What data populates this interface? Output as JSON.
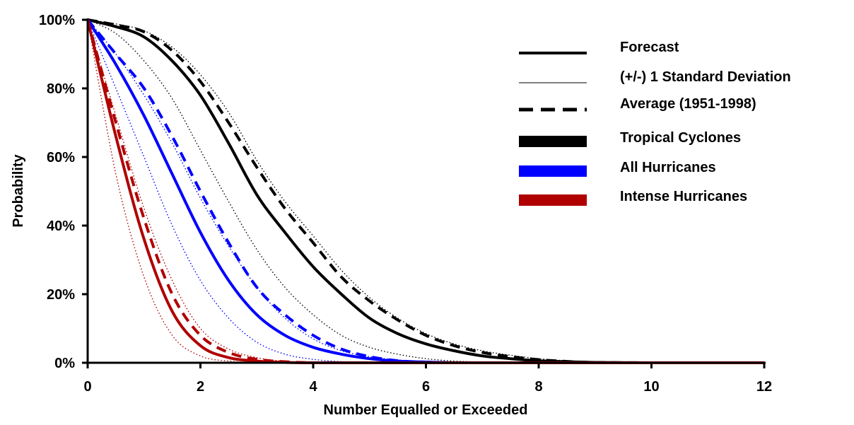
{
  "chart_data": {
    "type": "line",
    "title": "",
    "xlabel": "Number Equalled or Exceeded",
    "ylabel": "Probability",
    "xlim": [
      0,
      12
    ],
    "ylim": [
      0,
      100
    ],
    "x_ticks": [
      "0",
      "2",
      "4",
      "6",
      "8",
      "10",
      "12"
    ],
    "y_ticks": [
      "0%",
      "20%",
      "40%",
      "60%",
      "80%",
      "100%"
    ],
    "grid": false,
    "legend_placement": "top-right",
    "legend": {
      "styles": [
        {
          "label": "Forecast",
          "line": "solid"
        },
        {
          "label": "(+/-) 1 Standard Deviation",
          "line": "thin-dotted"
        },
        {
          "label": "Average (1951-1998)",
          "line": "dashed"
        }
      ],
      "groups": [
        {
          "label": "Tropical Cyclones",
          "color": "#000000"
        },
        {
          "label": "All Hurricanes",
          "color": "#0000ff"
        },
        {
          "label": "Intense Hurricanes",
          "color": "#b00000"
        }
      ]
    },
    "x": [
      0,
      0.5,
      1,
      1.5,
      2,
      2.5,
      3,
      3.5,
      4,
      4.5,
      5,
      5.5,
      6,
      6.5,
      7,
      7.5,
      8,
      8.5,
      9,
      10,
      11,
      12
    ],
    "series": [
      {
        "name": "Tropical Cyclones",
        "group": 0,
        "style": "forecast",
        "values": [
          100,
          98,
          95,
          88,
          78,
          64,
          49,
          38,
          28,
          20,
          13,
          8.5,
          5.5,
          3.5,
          2,
          1.2,
          0.6,
          0.3,
          0.1,
          0,
          0,
          0
        ]
      },
      {
        "group": 0,
        "style": "sd-upper",
        "values": [
          100,
          98.8,
          96.8,
          92,
          84,
          73,
          59,
          47,
          37,
          27,
          19,
          13,
          8.5,
          5.5,
          3.5,
          2.2,
          1.2,
          0.6,
          0.3,
          0,
          0,
          0
        ]
      },
      {
        "group": 0,
        "style": "sd-lower",
        "values": [
          100,
          96,
          88,
          77,
          62,
          47,
          33,
          22,
          14,
          8,
          4.5,
          2.5,
          1.2,
          0.5,
          0.2,
          0,
          0,
          0,
          0,
          0,
          0,
          0
        ]
      },
      {
        "group": 0,
        "style": "average",
        "values": [
          100,
          98.5,
          96.5,
          91,
          82,
          70,
          57,
          45,
          35,
          25,
          18,
          12.5,
          8,
          5,
          3,
          1.8,
          0.9,
          0.4,
          0.1,
          0,
          0,
          0
        ]
      },
      {
        "name": "All Hurricanes",
        "group": 1,
        "style": "forecast",
        "values": [
          100,
          87,
          72,
          55,
          38,
          24,
          14,
          8,
          4.5,
          2.5,
          1.2,
          0.5,
          0.2,
          0,
          0,
          0,
          0,
          0,
          0,
          0,
          0,
          0
        ]
      },
      {
        "group": 1,
        "style": "sd-upper",
        "values": [
          100,
          90,
          78,
          64,
          48,
          34,
          22,
          13,
          7,
          3.5,
          1.8,
          0.8,
          0.3,
          0,
          0,
          0,
          0,
          0,
          0,
          0,
          0,
          0
        ]
      },
      {
        "group": 1,
        "style": "sd-lower",
        "values": [
          100,
          80,
          60,
          40,
          24,
          13,
          6,
          2.5,
          1,
          0.3,
          0,
          0,
          0,
          0,
          0,
          0,
          0,
          0,
          0,
          0,
          0,
          0
        ]
      },
      {
        "group": 1,
        "style": "average",
        "values": [
          100,
          90,
          80,
          66,
          50,
          35,
          22,
          14,
          8,
          4,
          1.8,
          0.6,
          0.2,
          0,
          0,
          0,
          0,
          0,
          0,
          0,
          0,
          0
        ]
      },
      {
        "name": "Intense Hurricanes",
        "group": 2,
        "style": "forecast",
        "values": [
          100,
          66,
          36,
          15,
          5,
          1.5,
          0.5,
          0.1,
          0,
          0,
          0,
          0,
          0,
          0,
          0,
          0,
          0,
          0,
          0,
          0,
          0,
          0
        ]
      },
      {
        "group": 2,
        "style": "sd-upper",
        "values": [
          100,
          72,
          45,
          24,
          10,
          4,
          1.5,
          0.4,
          0,
          0,
          0,
          0,
          0,
          0,
          0,
          0,
          0,
          0,
          0,
          0,
          0,
          0
        ]
      },
      {
        "group": 2,
        "style": "sd-lower",
        "values": [
          100,
          55,
          25,
          8,
          2,
          0.5,
          0.1,
          0,
          0,
          0,
          0,
          0,
          0,
          0,
          0,
          0,
          0,
          0,
          0,
          0,
          0,
          0
        ]
      },
      {
        "group": 2,
        "style": "average",
        "values": [
          100,
          70,
          42,
          20,
          8,
          3,
          1,
          0.3,
          0,
          0,
          0,
          0,
          0,
          0,
          0,
          0,
          0,
          0,
          0,
          0,
          0,
          0
        ]
      }
    ]
  }
}
